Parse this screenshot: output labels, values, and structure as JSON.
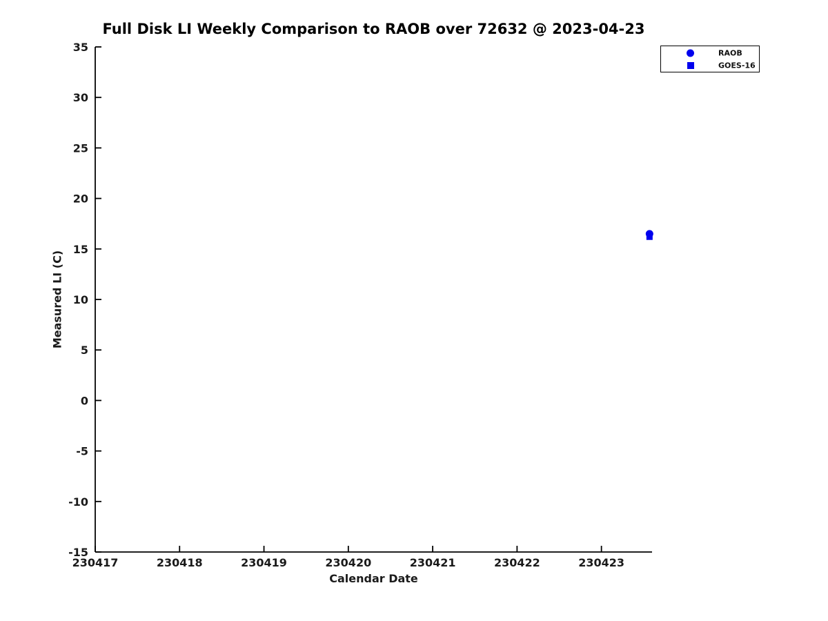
{
  "chart_data": {
    "type": "scatter",
    "title": "Full Disk LI Weekly Comparison to RAOB over 72632 @ 2023-04-23",
    "xlabel": "Calendar Date",
    "ylabel": "Measured LI (C)",
    "xlim": [
      230417,
      230423.6
    ],
    "ylim": [
      -15,
      35
    ],
    "x_ticks": [
      "230417",
      "230418",
      "230419",
      "230420",
      "230421",
      "230422",
      "230423"
    ],
    "x_tick_values": [
      230417,
      230418,
      230419,
      230420,
      230421,
      230422,
      230423
    ],
    "y_ticks": [
      "35",
      "30",
      "25",
      "20",
      "15",
      "10",
      "5",
      "0",
      "-5",
      "-10",
      "-15"
    ],
    "y_tick_values": [
      35,
      30,
      25,
      20,
      15,
      10,
      5,
      0,
      -5,
      -10,
      -15
    ],
    "grid": false,
    "box": false,
    "tick_direction": "in",
    "axis_color": "#000000",
    "tick_label_color": "#1a1a1a",
    "marker_color": "#0000ee",
    "legend_position": "outside-top-right",
    "series": [
      {
        "name": "RAOB",
        "marker": "circle",
        "color": "#0000ee",
        "points": [
          {
            "x": 230423.57,
            "y": 16.5
          }
        ]
      },
      {
        "name": "GOES-16",
        "marker": "square",
        "color": "#0000ee",
        "points": [
          {
            "x": 230423.57,
            "y": 16.2
          }
        ]
      }
    ]
  }
}
